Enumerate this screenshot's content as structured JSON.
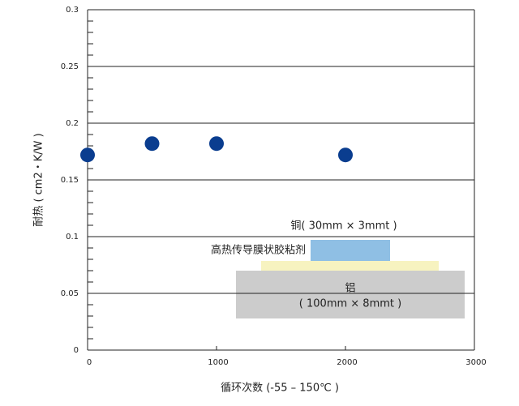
{
  "chart_data": {
    "type": "scatter",
    "x_label": "循环次数 (-55 – 150℃ )",
    "y_label": "耐热 ( cm2・K/W )",
    "x": [
      0,
      500,
      1000,
      2000
    ],
    "values": [
      0.172,
      0.182,
      0.182,
      0.172
    ],
    "color": "#0a3d8f",
    "xlim": [
      0,
      3000
    ],
    "xticks": [
      0,
      1000,
      2000,
      3000
    ],
    "ylim": [
      0,
      0.3
    ],
    "yticks": [
      0,
      0.05,
      0.1,
      0.15,
      0.2,
      0.25,
      0.3
    ],
    "yminorticks": [
      0.01,
      0.02,
      0.03,
      0.04,
      0.06,
      0.07,
      0.08,
      0.09,
      0.11,
      0.12,
      0.13,
      0.14,
      0.16,
      0.17,
      0.18,
      0.19,
      0.21,
      0.22,
      0.23,
      0.24,
      0.26,
      0.27,
      0.28,
      0.29
    ],
    "grid": true,
    "annotations": {
      "copper": "铜( 30mm × 3mmt )",
      "adhesive": "高热传导膜状胶粘剂",
      "aluminum": "铝",
      "aluminum_size": "( 100mm × 8mmt )"
    }
  }
}
